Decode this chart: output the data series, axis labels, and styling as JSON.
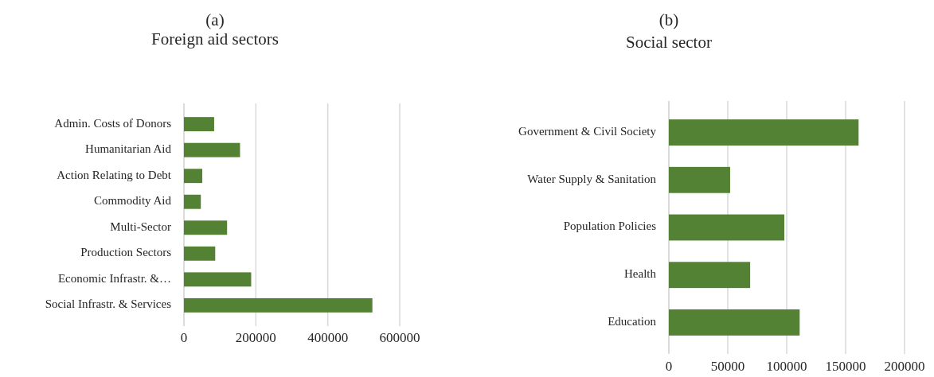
{
  "chart_data": [
    {
      "type": "bar",
      "orientation": "horizontal",
      "title": "(a)",
      "subtitle": "Foreign aid sectors",
      "categories": [
        "Admin. Costs of Donors",
        "Humanitarian Aid",
        "Action Relating to Debt",
        "Commodity Aid",
        "Multi-Sector",
        "Production Sectors",
        "Economic Infrastr. &…",
        "Social Infrastr. & Services"
      ],
      "values": [
        84000,
        156000,
        51000,
        47000,
        120000,
        87000,
        187000,
        524000
      ],
      "color": "#548235",
      "xlim": [
        0,
        600000
      ],
      "xticks": [
        0,
        200000,
        400000,
        600000
      ],
      "grid": "x"
    },
    {
      "type": "bar",
      "orientation": "horizontal",
      "title": "(b)",
      "subtitle": "Social sector",
      "categories": [
        "Government & Civil Society",
        "Water Supply & Sanitation",
        "Population Policies",
        "Health",
        "Education"
      ],
      "values": [
        161000,
        52000,
        98000,
        69000,
        111000
      ],
      "color": "#548235",
      "xlim": [
        0,
        200000
      ],
      "xticks": [
        0,
        50000,
        100000,
        150000,
        200000
      ],
      "grid": "x"
    }
  ]
}
